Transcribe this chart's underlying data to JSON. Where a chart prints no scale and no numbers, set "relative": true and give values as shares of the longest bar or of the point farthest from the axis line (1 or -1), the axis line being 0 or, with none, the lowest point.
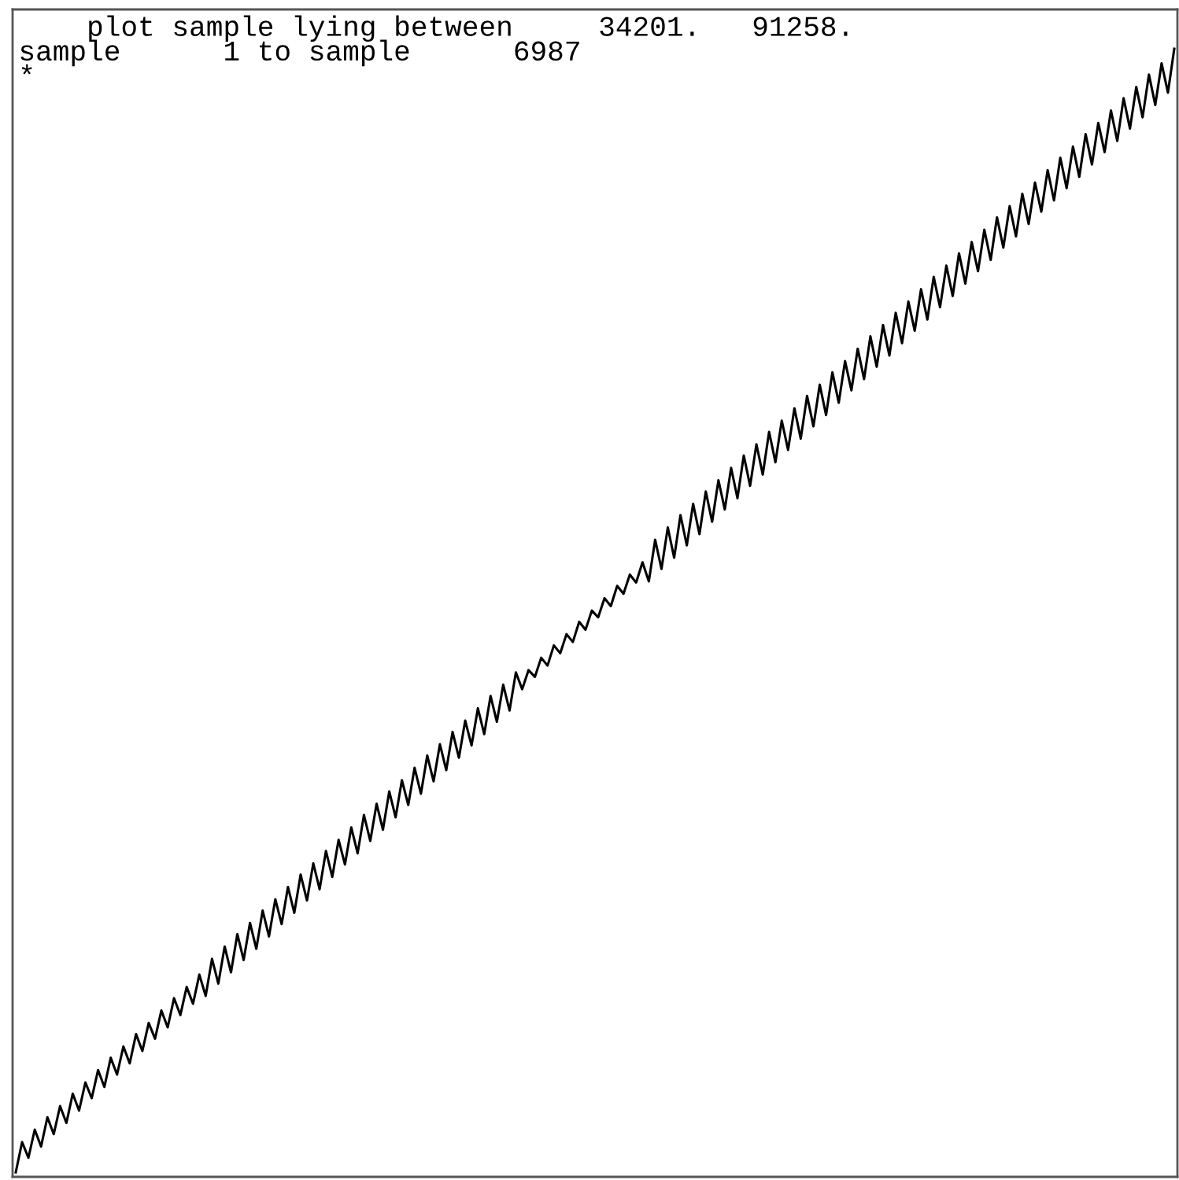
{
  "chart_data": {
    "type": "line",
    "relative": true,
    "title": "    plot sample lying between     34201.   91258.",
    "subtitle": "sample      1 to sample      6987",
    "annotations": [
      "*"
    ],
    "marker": "none",
    "line_style": "solid",
    "categories": [
      null,
      null,
      null,
      null,
      null,
      null,
      null,
      null,
      null,
      null,
      null,
      null,
      null,
      null,
      null,
      null,
      null,
      null,
      null,
      null,
      null,
      null,
      null,
      null,
      null,
      null,
      null,
      null,
      null,
      null,
      null,
      null,
      null,
      null,
      null,
      null,
      null,
      null,
      null,
      null,
      null,
      null,
      null,
      null,
      null,
      null,
      null,
      null,
      null,
      null,
      null,
      null,
      null,
      null,
      null,
      null,
      null,
      null,
      null,
      null,
      null,
      null,
      null,
      null,
      null,
      null,
      null,
      null,
      null,
      null,
      null,
      null,
      null,
      null,
      null,
      null,
      null,
      null,
      null,
      null,
      null,
      null,
      null,
      null,
      null,
      null,
      null,
      null,
      null,
      null,
      null,
      null,
      null,
      null,
      null,
      null,
      null,
      null,
      null,
      null,
      null,
      null,
      null,
      null,
      null,
      null,
      null,
      null,
      null,
      null,
      null,
      null,
      null,
      null,
      null,
      null,
      null,
      null,
      null,
      null,
      null,
      null,
      null,
      null,
      null,
      null,
      null,
      null,
      null,
      null,
      null,
      null,
      null,
      null,
      null,
      null,
      null,
      null,
      null,
      null,
      null,
      null,
      null,
      null,
      null,
      null,
      null,
      null,
      null,
      null,
      null,
      null,
      null,
      null,
      null,
      null,
      null,
      null,
      null,
      null,
      null,
      null,
      null,
      null,
      null,
      null,
      null,
      null,
      null,
      null,
      null,
      null,
      null,
      null,
      null,
      null,
      null,
      null,
      null,
      null,
      null,
      null,
      null,
      null
    ],
    "series": [
      {
        "color": "#000000",
        "values": [
          0.0,
          0.027,
          0.013,
          0.038,
          0.023,
          0.049,
          0.034,
          0.059,
          0.044,
          0.07,
          0.055,
          0.08,
          0.066,
          0.091,
          0.076,
          0.102,
          0.087,
          0.112,
          0.097,
          0.123,
          0.108,
          0.133,
          0.119,
          0.144,
          0.129,
          0.155,
          0.14,
          0.165,
          0.15,
          0.176,
          0.157,
          0.19,
          0.168,
          0.201,
          0.178,
          0.212,
          0.189,
          0.222,
          0.199,
          0.233,
          0.21,
          0.243,
          0.221,
          0.254,
          0.231,
          0.265,
          0.242,
          0.275,
          0.252,
          0.286,
          0.263,
          0.296,
          0.274,
          0.307,
          0.284,
          0.318,
          0.295,
          0.328,
          0.305,
          0.339,
          0.316,
          0.349,
          0.327,
          0.36,
          0.337,
          0.371,
          0.348,
          0.381,
          0.358,
          0.392,
          0.369,
          0.402,
          0.38,
          0.413,
          0.39,
          0.424,
          0.401,
          0.434,
          0.411,
          0.445,
          0.43,
          0.447,
          0.441,
          0.458,
          0.451,
          0.469,
          0.462,
          0.479,
          0.472,
          0.49,
          0.483,
          0.5,
          0.494,
          0.511,
          0.504,
          0.522,
          0.515,
          0.532,
          0.525,
          0.543,
          0.526,
          0.563,
          0.537,
          0.574,
          0.547,
          0.585,
          0.558,
          0.595,
          0.568,
          0.606,
          0.579,
          0.616,
          0.59,
          0.627,
          0.6,
          0.638,
          0.611,
          0.648,
          0.621,
          0.659,
          0.632,
          0.669,
          0.643,
          0.68,
          0.653,
          0.691,
          0.664,
          0.701,
          0.674,
          0.712,
          0.685,
          0.722,
          0.696,
          0.733,
          0.706,
          0.744,
          0.717,
          0.754,
          0.727,
          0.765,
          0.738,
          0.775,
          0.749,
          0.786,
          0.759,
          0.797,
          0.77,
          0.807,
          0.78,
          0.818,
          0.791,
          0.828,
          0.802,
          0.839,
          0.812,
          0.85,
          0.823,
          0.86,
          0.833,
          0.871,
          0.844,
          0.881,
          0.855,
          0.892,
          0.865,
          0.903,
          0.876,
          0.913,
          0.886,
          0.924,
          0.897,
          0.934,
          0.908,
          0.945,
          0.918,
          0.956,
          0.929,
          0.966,
          0.939,
          0.977,
          0.95,
          0.987,
          0.961,
          1.0
        ]
      }
    ]
  }
}
